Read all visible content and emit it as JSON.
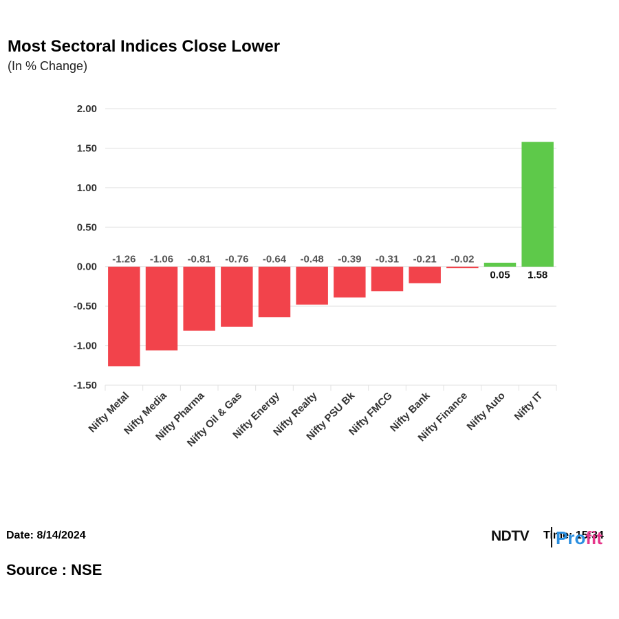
{
  "header": {
    "title": "Most Sectoral Indices Close Lower",
    "subtitle": "(In % Change)"
  },
  "footer": {
    "date": "Date: 8/14/2024",
    "time": "Time: 15:34",
    "source": "Source : NSE",
    "logo_left": "NDTV",
    "logo_right_a": "Pro",
    "logo_right_b": "fit"
  },
  "colors": {
    "negative": "#f2434b",
    "positive": "#5ec94a",
    "grid": "#e2e2e2"
  },
  "chart_data": {
    "type": "bar",
    "title": "Most Sectoral Indices Close Lower",
    "subtitle": "(In % Change)",
    "categories": [
      "Nifty Metal",
      "Nifty Media",
      "Nifty Pharma",
      "Nifty Oil & Gas",
      "Nifty Energy",
      "Nifty Realty",
      "Nifty PSU Bk",
      "Nifty FMCG",
      "Nifty Bank",
      "Nifty Finance",
      "Nifty Auto",
      "Nifty IT"
    ],
    "values": [
      -1.26,
      -1.06,
      -0.81,
      -0.76,
      -0.64,
      -0.48,
      -0.39,
      -0.31,
      -0.21,
      -0.02,
      0.05,
      1.58
    ],
    "value_labels": [
      "-1.26",
      "-1.06",
      "-0.81",
      "-0.76",
      "-0.64",
      "-0.48",
      "-0.39",
      "-0.31",
      "-0.21",
      "-0.02",
      "0.05",
      "1.58"
    ],
    "ylim": [
      -1.5,
      2.0
    ],
    "yticks": [
      2.0,
      1.5,
      1.0,
      0.5,
      0.0,
      -0.5,
      -1.0,
      -1.5
    ],
    "ytick_labels": [
      "2.00",
      "1.50",
      "1.00",
      "0.50",
      "0.00",
      "-0.50",
      "-1.00",
      "-1.50"
    ],
    "grid": true,
    "legend": "none"
  }
}
